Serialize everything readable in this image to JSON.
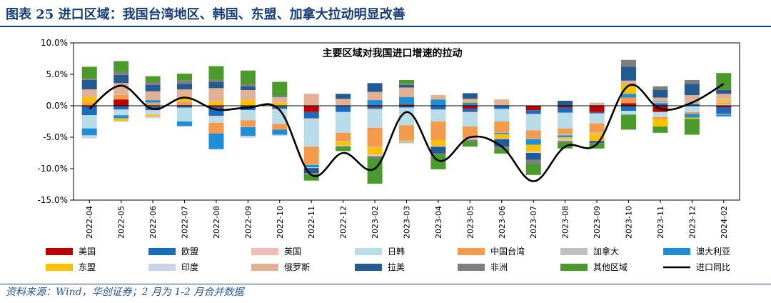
{
  "header": {
    "title": "图表 25   进口区域：我国台湾地区、韩国、东盟、加拿大拉动明显改善"
  },
  "footnote": "资料来源：Wind，华创证券；2 月为 1-2 月合并数据",
  "chart_data": {
    "type": "bar",
    "subtype": "stacked-bar-with-line",
    "title": "主要区域对我国进口增速的拉动",
    "ylim": [
      -15,
      10
    ],
    "yticks": [
      10,
      5,
      0,
      -5,
      -10,
      -15
    ],
    "ytick_labels": [
      "10.0%",
      "5.0%",
      "0.0%",
      "-5.0%",
      "-10.0%",
      "-15.0%"
    ],
    "categories": [
      "2022-04",
      "2022-05",
      "2022-06",
      "2022-07",
      "2022-08",
      "2022-09",
      "2022-10",
      "2022-11",
      "2022-12",
      "2023-02",
      "2023-03",
      "2023-04",
      "2023-05",
      "2023-06",
      "2023-07",
      "2023-08",
      "2023-09",
      "2023-10",
      "2023-11",
      "2023-12",
      "2024-02"
    ],
    "series": [
      {
        "name": "美国",
        "color": "#c00000",
        "values": [
          -0.2,
          1.0,
          -0.1,
          0.1,
          -0.2,
          -0.1,
          -0.1,
          -1.0,
          0.0,
          -0.2,
          0.2,
          0.0,
          -0.5,
          0.0,
          -0.7,
          -0.3,
          -1.0,
          0.4,
          -1.0,
          0.0,
          -0.3
        ]
      },
      {
        "name": "欧盟",
        "color": "#1a6dbd",
        "values": [
          -1.3,
          -0.6,
          -0.6,
          -0.3,
          -1.4,
          -0.6,
          -0.4,
          -1.0,
          -1.0,
          -0.3,
          -0.3,
          -0.6,
          -0.5,
          -0.5,
          -0.6,
          -0.8,
          -0.2,
          -0.8,
          0.4,
          0.3,
          -1.0
        ]
      },
      {
        "name": "英国",
        "color": "#f2b9b9",
        "values": [
          0.0,
          -0.1,
          -0.1,
          0.0,
          -0.1,
          0.0,
          -0.1,
          -0.2,
          0.0,
          -0.1,
          0.0,
          -0.1,
          -0.1,
          0.0,
          -0.1,
          0.0,
          -0.1,
          0.0,
          0.0,
          -0.1,
          -0.1
        ]
      },
      {
        "name": "日韩",
        "color": "#b9dce9",
        "values": [
          -2.1,
          -0.8,
          -0.6,
          -2.2,
          -1.0,
          -1.6,
          -2.3,
          -4.3,
          -3.3,
          -2.9,
          -2.8,
          -1.8,
          -2.2,
          -2.0,
          -2.5,
          -2.5,
          -1.5,
          -0.5,
          -0.8,
          -0.9,
          0.2
        ]
      },
      {
        "name": "中国台湾",
        "color": "#f59a4a",
        "values": [
          0.5,
          0.7,
          0.4,
          0.5,
          -1.7,
          -1.0,
          -0.9,
          -2.8,
          -1.3,
          -3.0,
          -2.4,
          -3.0,
          -1.9,
          -1.7,
          -1.3,
          -0.9,
          -1.4,
          0.9,
          -0.3,
          -0.3,
          0.2
        ]
      },
      {
        "name": "加拿大",
        "color": "#bfbfbf",
        "values": [
          0.0,
          0.1,
          0.1,
          0.1,
          0.0,
          -0.1,
          0.0,
          -0.1,
          -0.1,
          -0.1,
          -0.3,
          0.0,
          -0.1,
          -0.1,
          -0.1,
          -0.2,
          -0.2,
          0.0,
          0.2,
          0.3,
          0.2
        ]
      },
      {
        "name": "澳大利亚",
        "color": "#1e8fd6",
        "values": [
          -1.1,
          -0.5,
          0.4,
          -0.7,
          -2.5,
          -1.4,
          -0.8,
          -0.4,
          0.0,
          0.9,
          1.2,
          1.0,
          0.5,
          -0.2,
          -0.9,
          -0.3,
          0.1,
          0.6,
          0.1,
          -0.6,
          -0.3
        ]
      },
      {
        "name": "东盟",
        "color": "#ffc000",
        "values": [
          0.9,
          -0.4,
          -0.3,
          0.6,
          0.7,
          0.9,
          0.5,
          0.0,
          -0.6,
          -1.2,
          -0.1,
          -0.9,
          0.2,
          -0.7,
          -1.1,
          -0.3,
          -1.2,
          1.5,
          -1.2,
          -0.2,
          0.4
        ]
      },
      {
        "name": "印度",
        "color": "#ccd4ea",
        "values": [
          -0.5,
          -0.2,
          -0.3,
          -0.2,
          -0.1,
          -0.3,
          -0.2,
          -0.1,
          -0.1,
          -0.2,
          -0.1,
          -0.1,
          -0.1,
          -0.1,
          -0.2,
          -0.2,
          0.0,
          -0.1,
          0.0,
          0.0,
          0.1
        ]
      },
      {
        "name": "俄罗斯",
        "color": "#e2b194",
        "values": [
          1.2,
          1.8,
          1.4,
          1.3,
          2.1,
          1.6,
          0.9,
          1.9,
          1.1,
          1.3,
          1.5,
          0.7,
          0.4,
          1.0,
          0.0,
          -0.1,
          0.4,
          0.6,
          0.6,
          1.1,
          0.8
        ]
      },
      {
        "name": "拉美",
        "color": "#245a94",
        "values": [
          1.5,
          1.3,
          1.0,
          0.9,
          1.0,
          0.6,
          0.1,
          -0.8,
          0.8,
          1.4,
          0.4,
          -1.1,
          0.9,
          -1.2,
          -1.1,
          0.8,
          -0.3,
          2.2,
          1.2,
          1.8,
          0.6
        ]
      },
      {
        "name": "非洲",
        "color": "#7f7f7f",
        "values": [
          0.2,
          0.5,
          0.5,
          0.5,
          0.3,
          0.3,
          0.0,
          -0.2,
          -0.1,
          -0.3,
          0.2,
          -0.1,
          -0.3,
          -0.3,
          -0.6,
          -0.2,
          -0.1,
          1.1,
          0.6,
          0.6,
          0.1
        ]
      },
      {
        "name": "其他区域",
        "color": "#4b9a2c",
        "values": [
          1.9,
          1.7,
          0.9,
          1.1,
          2.2,
          2.2,
          2.3,
          -1.0,
          -0.7,
          -4.1,
          0.6,
          -2.4,
          -0.8,
          -0.8,
          -1.8,
          -1.0,
          -0.8,
          -2.4,
          -1.0,
          -2.5,
          2.6
        ]
      }
    ],
    "line": {
      "name": "进口同比",
      "color": "#000000",
      "values": [
        -0.5,
        3.2,
        -0.5,
        1.3,
        -0.6,
        -0.3,
        -0.7,
        -11.0,
        -7.5,
        -10.0,
        -1.0,
        -8.7,
        -5.0,
        -6.5,
        -12.0,
        -6.5,
        -6.1,
        3.2,
        -0.5,
        0.5,
        3.5
      ]
    }
  }
}
